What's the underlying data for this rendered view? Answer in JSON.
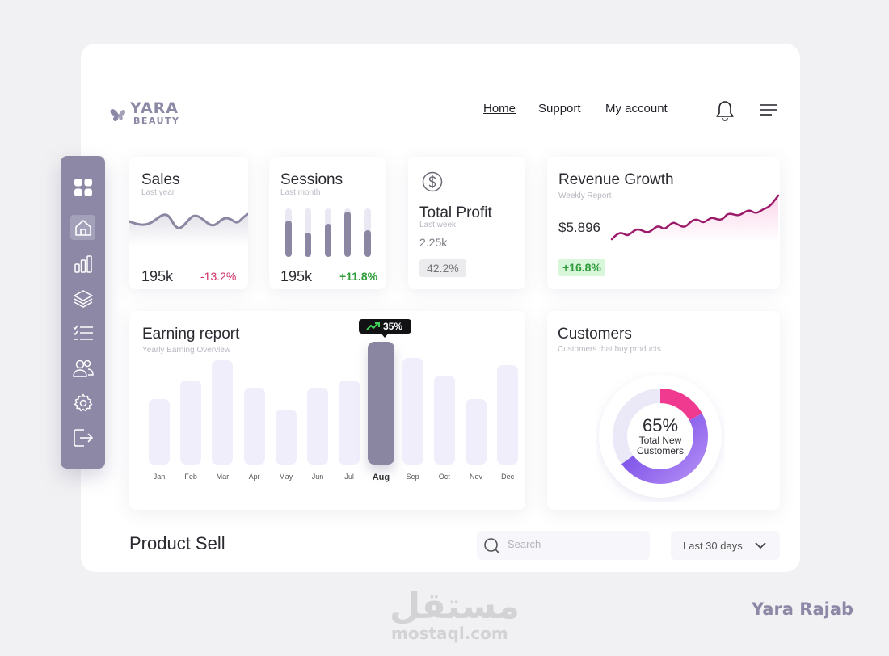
{
  "brand": {
    "name": "YARA",
    "tagline": "BEAUTY"
  },
  "nav": {
    "items": [
      {
        "label": "Home"
      },
      {
        "label": "Support"
      },
      {
        "label": "My account"
      }
    ]
  },
  "header_icons": {
    "bell": "bell-icon",
    "menu": "hamburger-menu-icon"
  },
  "sidebar": {
    "items": [
      {
        "icon": "dashboard-grid-icon",
        "active": false
      },
      {
        "icon": "home-icon",
        "active": true
      },
      {
        "icon": "bar-chart-icon",
        "active": false
      },
      {
        "icon": "layers-icon",
        "active": false
      },
      {
        "icon": "checklist-icon",
        "active": false
      },
      {
        "icon": "users-icon",
        "active": false
      },
      {
        "icon": "settings-gear-icon",
        "active": false
      },
      {
        "icon": "logout-icon",
        "active": false
      }
    ],
    "color": "#8c88a5"
  },
  "cards": {
    "sales": {
      "title": "Sales",
      "subtitle": "Last year",
      "value": "195k",
      "change": "-13.2%"
    },
    "sessions": {
      "title": "Sessions",
      "subtitle": "Last month",
      "value": "195k",
      "change": "+11.8%",
      "bar_levels": [
        0.75,
        0.5,
        0.68,
        0.93,
        0.55
      ]
    },
    "profit": {
      "title": "Total Profit",
      "subtitle": "Last week",
      "value": "2.25k",
      "badge": "42.2%",
      "icon": "dollar-coin-icon"
    },
    "revenue": {
      "title": "Revenue Growth",
      "subtitle": "Weekly Report",
      "value": "$5.896",
      "badge": "+16.8%"
    }
  },
  "earning": {
    "title": "Earning report",
    "subtitle": "Yearly Earning Overview",
    "tooltip": "35%",
    "active_index": 7
  },
  "chart_data": {
    "type": "bar",
    "categories": [
      "Jan",
      "Feb",
      "Mar",
      "Apr",
      "May",
      "Jun",
      "Jul",
      "Aug",
      "Sep",
      "Oct",
      "Nov",
      "Dec"
    ],
    "values": [
      81,
      104,
      129,
      95,
      68,
      95,
      104,
      152,
      132,
      110,
      81,
      123
    ],
    "ylim": [
      0,
      160
    ]
  },
  "customers": {
    "title": "Customers",
    "subtitle": "Customers that buy products",
    "percent": "65%",
    "label_line1": "Total New",
    "label_line2": "Customers",
    "segments": [
      {
        "value": 0.17,
        "color": "#f03a8f"
      },
      {
        "value": 0.48,
        "color": "#7d3df0"
      }
    ]
  },
  "product_sell": {
    "title": "Product Sell",
    "search_placeholder": "Search",
    "filter_value": "Last 30 days"
  },
  "watermark": {
    "arabic": "مستقل",
    "latin": "mostaql.com"
  },
  "credit": "Yara Rajab",
  "colors": {
    "accent": "#8c88a5",
    "negative": "#d12e69",
    "positive": "#2f9c3a",
    "line": "#9b1a6a"
  }
}
